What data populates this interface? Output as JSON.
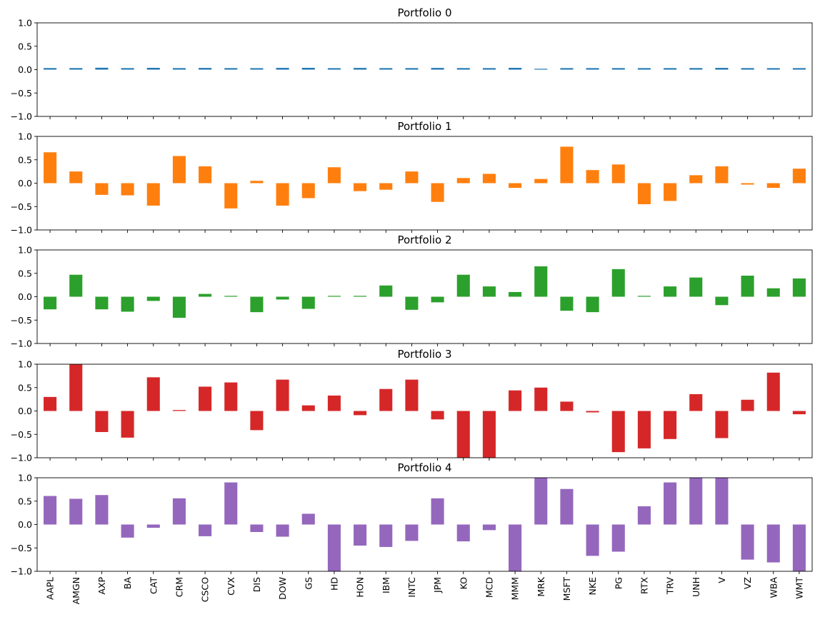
{
  "chart_data": {
    "type": "bar",
    "categories": [
      "AAPL",
      "AMGN",
      "AXP",
      "BA",
      "CAT",
      "CRM",
      "CSCO",
      "CVX",
      "DIS",
      "DOW",
      "GS",
      "HD",
      "HON",
      "IBM",
      "INTC",
      "JPM",
      "KO",
      "MCD",
      "MMM",
      "MRK",
      "MSFT",
      "NKE",
      "PG",
      "RTX",
      "TRV",
      "UNH",
      "V",
      "VZ",
      "WBA",
      "WMT"
    ],
    "ylim": [
      -1.0,
      1.0
    ],
    "yticks": [
      -1.0,
      -0.5,
      0.0,
      0.5,
      1.0
    ],
    "ytick_labels": [
      "−1.0",
      "−0.5",
      "0.0",
      "0.5",
      "1.0"
    ],
    "series": [
      {
        "name": "Portfolio 0",
        "title": "Portfolio 0",
        "color": "#1f77b4",
        "values": [
          0.033,
          0.033,
          0.04,
          0.032,
          0.038,
          0.032,
          0.036,
          0.032,
          0.031,
          0.037,
          0.038,
          0.031,
          0.036,
          0.032,
          0.032,
          0.036,
          0.033,
          0.032,
          0.038,
          0.01,
          0.032,
          0.032,
          0.032,
          0.032,
          0.032,
          0.033,
          0.037,
          0.032,
          0.031,
          0.032
        ]
      },
      {
        "name": "Portfolio 1",
        "title": "Portfolio 1",
        "color": "#ff7f0e",
        "values": [
          0.66,
          0.25,
          -0.25,
          -0.26,
          -0.48,
          0.58,
          0.36,
          -0.54,
          0.05,
          -0.48,
          -0.32,
          0.34,
          -0.17,
          -0.14,
          0.25,
          -0.4,
          0.11,
          0.2,
          -0.1,
          0.09,
          0.78,
          0.28,
          0.4,
          -0.45,
          -0.38,
          0.17,
          0.36,
          -0.03,
          -0.1,
          0.31
        ]
      },
      {
        "name": "Portfolio 2",
        "title": "Portfolio 2",
        "color": "#2ca02c",
        "values": [
          -0.27,
          0.47,
          -0.27,
          -0.32,
          -0.09,
          -0.45,
          0.06,
          0.0,
          -0.33,
          -0.06,
          -0.26,
          0.0,
          0.0,
          0.24,
          -0.28,
          -0.12,
          0.47,
          0.22,
          0.1,
          0.65,
          -0.3,
          -0.33,
          0.59,
          0.0,
          0.22,
          0.41,
          -0.18,
          0.45,
          0.18,
          0.39
        ]
      },
      {
        "name": "Portfolio 3",
        "title": "Portfolio 3",
        "color": "#d62728",
        "values": [
          0.3,
          1.0,
          -0.45,
          -0.57,
          0.72,
          0.02,
          0.52,
          0.61,
          -0.41,
          0.67,
          0.12,
          0.33,
          -0.09,
          0.47,
          0.67,
          -0.18,
          -1.0,
          -1.0,
          0.44,
          0.5,
          0.2,
          -0.03,
          -0.88,
          -0.8,
          -0.6,
          0.36,
          -0.58,
          0.24,
          0.82,
          -0.07
        ]
      },
      {
        "name": "Portfolio 4",
        "title": "Portfolio 4",
        "color": "#9467bd",
        "values": [
          0.61,
          0.55,
          0.63,
          -0.28,
          -0.07,
          0.56,
          -0.25,
          0.9,
          -0.16,
          -0.26,
          0.23,
          -1.0,
          -0.45,
          -0.48,
          -0.35,
          0.56,
          -0.36,
          -0.12,
          -1.0,
          1.0,
          0.76,
          -0.67,
          -0.58,
          0.39,
          0.9,
          1.0,
          1.0,
          -0.75,
          -0.81,
          -1.0
        ]
      }
    ],
    "grid": false,
    "legend": "none",
    "xlabel": "",
    "ylabel": ""
  }
}
